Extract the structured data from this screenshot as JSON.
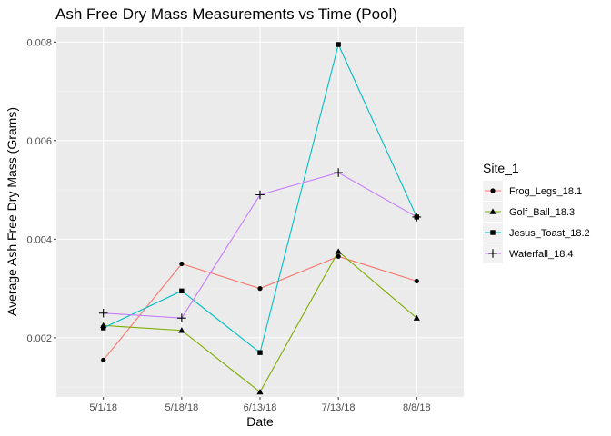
{
  "chart_data": {
    "type": "line",
    "title": "Ash Free Dry Mass Measurements vs Time (Pool)",
    "xlabel": "Date",
    "ylabel": "Average Ash Free Dry Mass (Grams)",
    "categories": [
      "5/1/18",
      "5/18/18",
      "6/13/18",
      "7/13/18",
      "8/8/18"
    ],
    "ylim": [
      0.0008,
      0.0083
    ],
    "yticks": [
      0.002,
      0.004,
      0.006,
      0.008
    ],
    "ytick_labels": [
      "0.002",
      "0.004",
      "0.006",
      "0.008"
    ],
    "grid": true,
    "legend": {
      "title": "Site_1",
      "position": "right"
    },
    "series": [
      {
        "name": "Frog_Legs_18.1",
        "color": "#F8766D",
        "marker": "circle",
        "values": [
          0.00155,
          0.0035,
          0.003,
          0.00365,
          0.00315
        ]
      },
      {
        "name": "Golf_Ball_18.3",
        "color": "#7CAE00",
        "marker": "triangle",
        "values": [
          0.00225,
          0.00215,
          0.0009,
          0.00375,
          0.0024
        ]
      },
      {
        "name": "Jesus_Toast_18.2",
        "color": "#00BFC4",
        "marker": "square",
        "values": [
          0.0022,
          0.00295,
          0.0017,
          0.00795,
          0.00445
        ]
      },
      {
        "name": "Waterfall_18.4",
        "color": "#C77CFF",
        "marker": "plus",
        "values": [
          0.0025,
          0.0024,
          0.0049,
          0.00535,
          0.00445
        ]
      }
    ]
  }
}
